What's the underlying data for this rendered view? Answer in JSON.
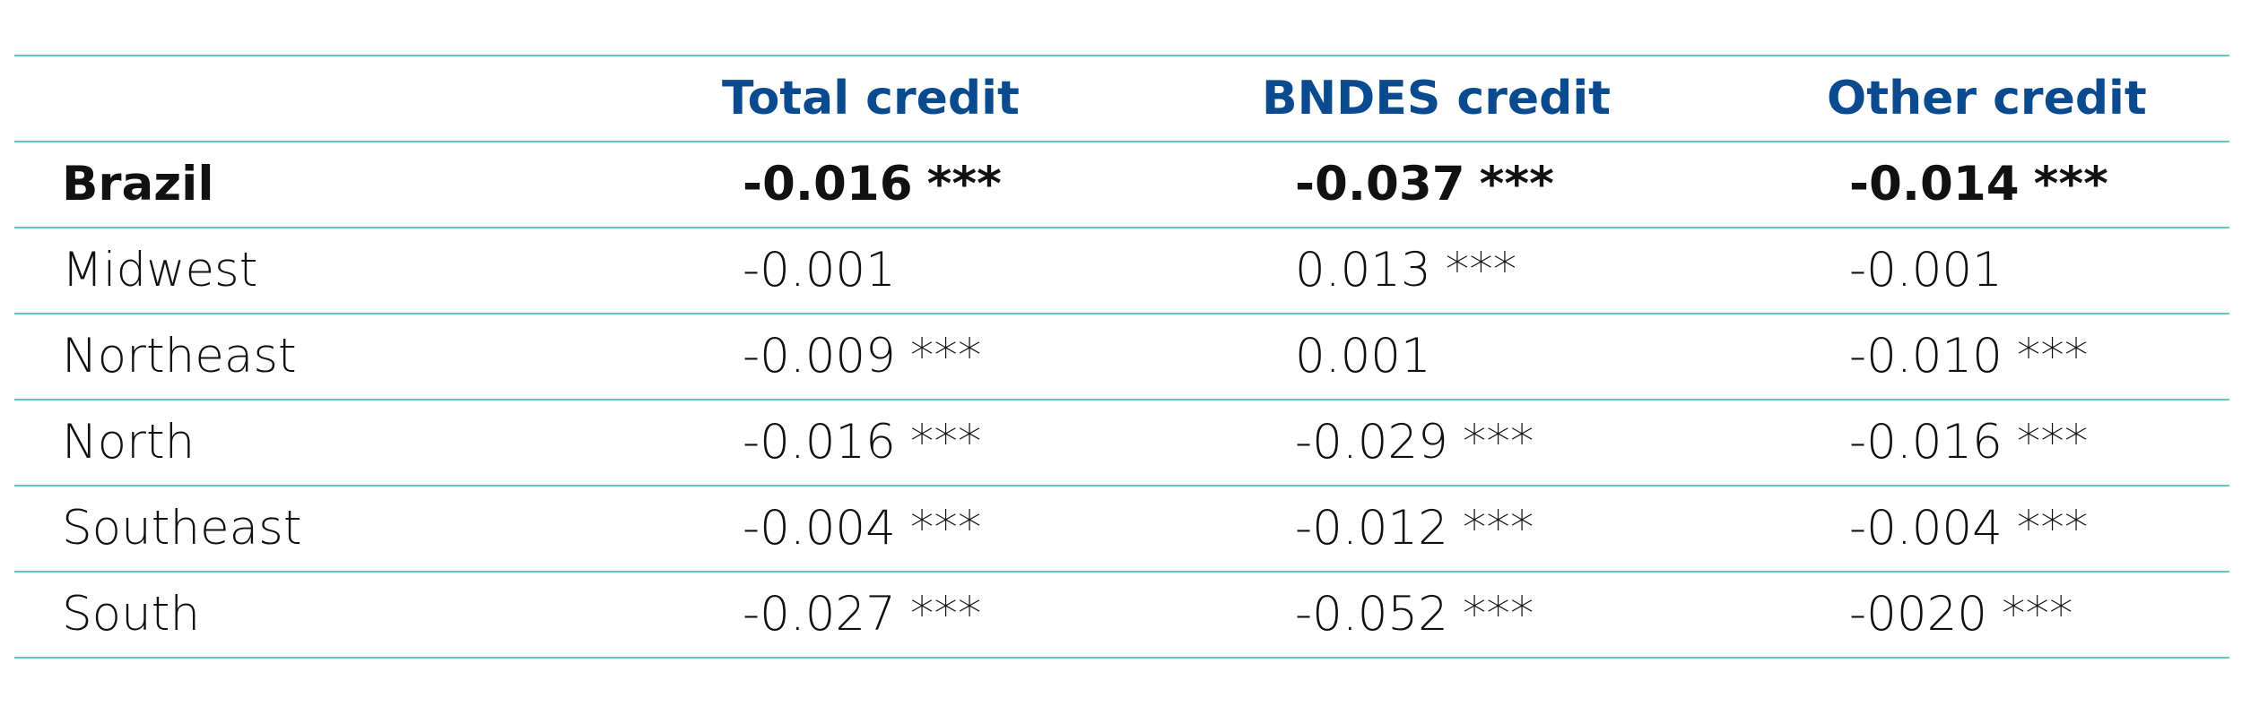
{
  "table": {
    "headers": [
      "",
      "Total credit",
      "BNDES credit",
      "Other credit"
    ],
    "rows": [
      {
        "label": "Brazil",
        "bold": true,
        "cells": [
          {
            "value": "-0.016",
            "sig": "***"
          },
          {
            "value": "-0.037",
            "sig": "***"
          },
          {
            "value": "-0.014",
            "sig": "***"
          }
        ]
      },
      {
        "label": "Midwest",
        "bold": false,
        "cells": [
          {
            "value": "-0.001",
            "sig": ""
          },
          {
            "value": "0.013",
            "sig": "***"
          },
          {
            "value": "-0.001",
            "sig": ""
          }
        ]
      },
      {
        "label": "Northeast",
        "bold": false,
        "cells": [
          {
            "value": "-0.009",
            "sig": "***"
          },
          {
            "value": "0.001",
            "sig": ""
          },
          {
            "value": "-0.010",
            "sig": "***"
          }
        ]
      },
      {
        "label": "North",
        "bold": false,
        "cells": [
          {
            "value": "-0.016",
            "sig": "***"
          },
          {
            "value": "-0.029",
            "sig": "***"
          },
          {
            "value": "-0.016",
            "sig": "***"
          }
        ]
      },
      {
        "label": "Southeast",
        "bold": false,
        "cells": [
          {
            "value": "-0.004",
            "sig": "***"
          },
          {
            "value": "-0.012",
            "sig": "***"
          },
          {
            "value": "-0.004",
            "sig": "***"
          }
        ]
      },
      {
        "label": "South",
        "bold": false,
        "cells": [
          {
            "value": "-0.027",
            "sig": "***"
          },
          {
            "value": "-0.052",
            "sig": "***"
          },
          {
            "value": "-0020",
            "sig": "***"
          }
        ]
      }
    ]
  },
  "colors": {
    "header_text": "#0a4b8f",
    "rule_lines": "#6cc4c0",
    "body_text": "#111111"
  }
}
